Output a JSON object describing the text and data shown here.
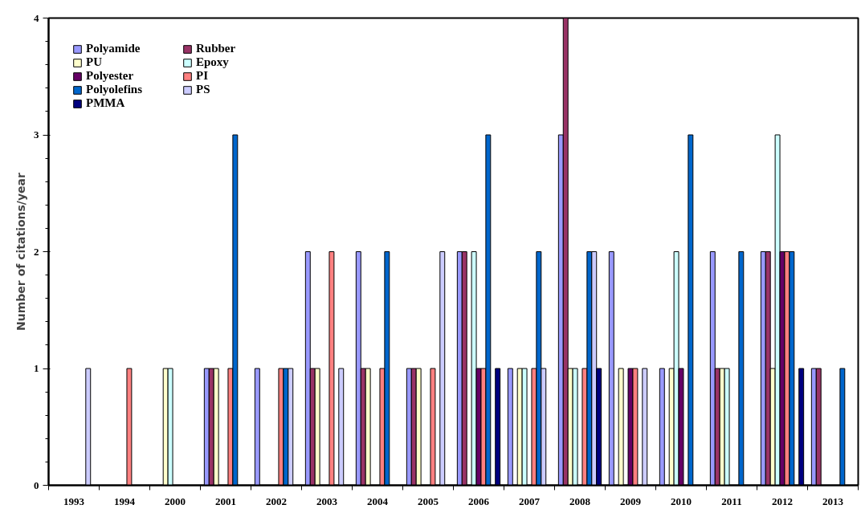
{
  "chart_data": {
    "type": "bar",
    "ylabel": "Number of citations/year",
    "categories": [
      "1993",
      "1994",
      "2000",
      "2001",
      "2002",
      "2003",
      "2004",
      "2005",
      "2006",
      "2007",
      "2008",
      "2009",
      "2010",
      "2011",
      "2012",
      "2013"
    ],
    "series": [
      {
        "name": "Polyamide",
        "color": "#9999ff",
        "values": [
          null,
          null,
          null,
          1,
          1,
          2,
          2,
          1,
          2,
          1,
          3,
          2,
          1,
          2,
          2,
          1
        ]
      },
      {
        "name": "Rubber",
        "color": "#993366",
        "values": [
          null,
          null,
          null,
          1,
          null,
          1,
          1,
          1,
          2,
          null,
          4,
          null,
          null,
          1,
          2,
          1
        ]
      },
      {
        "name": "PU",
        "color": "#ffffcc",
        "values": [
          null,
          null,
          1,
          1,
          null,
          1,
          1,
          1,
          null,
          1,
          1,
          1,
          1,
          1,
          1,
          null
        ]
      },
      {
        "name": "Epoxy",
        "color": "#ccffff",
        "values": [
          null,
          null,
          1,
          null,
          null,
          null,
          null,
          null,
          2,
          1,
          1,
          null,
          2,
          1,
          3,
          null
        ]
      },
      {
        "name": "Polyester",
        "color": "#660066",
        "values": [
          null,
          null,
          null,
          null,
          null,
          null,
          null,
          null,
          1,
          null,
          null,
          1,
          1,
          null,
          2,
          null
        ]
      },
      {
        "name": "PI",
        "color": "#ff8080",
        "values": [
          null,
          1,
          null,
          1,
          1,
          2,
          1,
          1,
          1,
          1,
          1,
          1,
          null,
          null,
          2,
          null
        ]
      },
      {
        "name": "Polyolefins",
        "color": "#0066cc",
        "values": [
          null,
          null,
          null,
          3,
          1,
          null,
          2,
          null,
          3,
          2,
          2,
          null,
          3,
          2,
          2,
          1
        ]
      },
      {
        "name": "PS",
        "color": "#ccccff",
        "values": [
          1,
          null,
          null,
          null,
          1,
          1,
          null,
          2,
          null,
          1,
          2,
          1,
          null,
          null,
          null,
          null
        ]
      },
      {
        "name": "PMMA",
        "color": "#000080",
        "values": [
          null,
          null,
          null,
          null,
          null,
          null,
          null,
          null,
          1,
          null,
          1,
          null,
          null,
          null,
          1,
          null
        ]
      }
    ],
    "ylim": [
      0,
      4
    ],
    "yticks": [
      0,
      1,
      2,
      3,
      4
    ],
    "grid": false,
    "legend": "top left"
  }
}
